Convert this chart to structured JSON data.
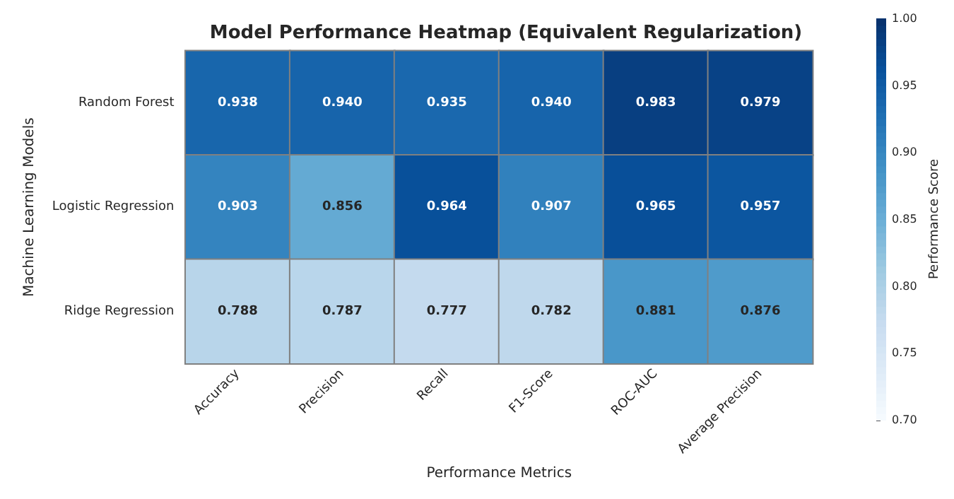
{
  "chart_data": {
    "type": "heatmap",
    "title": "Model Performance Heatmap (Equivalent Regularization)",
    "xlabel": "Performance Metrics",
    "ylabel": "Machine Learning Models",
    "clabel": "Performance Score",
    "categories": [
      "Accuracy",
      "Precision",
      "Recall",
      "F1-Score",
      "ROC-AUC",
      "Average Precision"
    ],
    "y_categories": [
      "Random Forest",
      "Logistic Regression",
      "Ridge Regression"
    ],
    "cells": [
      [
        0.938,
        0.94,
        0.935,
        0.94,
        0.983,
        0.979
      ],
      [
        0.903,
        0.856,
        0.964,
        0.907,
        0.965,
        0.957
      ],
      [
        0.788,
        0.787,
        0.777,
        0.782,
        0.881,
        0.876
      ]
    ],
    "cell_labels": [
      [
        "0.938",
        "0.940",
        "0.935",
        "0.940",
        "0.983",
        "0.979"
      ],
      [
        "0.903",
        "0.856",
        "0.964",
        "0.907",
        "0.965",
        "0.957"
      ],
      [
        "0.788",
        "0.787",
        "0.777",
        "0.782",
        "0.881",
        "0.876"
      ]
    ],
    "clim": [
      0.7,
      1.0
    ],
    "cticks": [
      {
        "value": 0.7,
        "label": "0.70"
      },
      {
        "value": 0.75,
        "label": "0.75"
      },
      {
        "value": 0.8,
        "label": "0.80"
      },
      {
        "value": 0.85,
        "label": "0.85"
      },
      {
        "value": 0.9,
        "label": "0.90"
      },
      {
        "value": 0.95,
        "label": "0.95"
      },
      {
        "value": 1.0,
        "label": "1.00"
      }
    ],
    "data_labels": true
  }
}
